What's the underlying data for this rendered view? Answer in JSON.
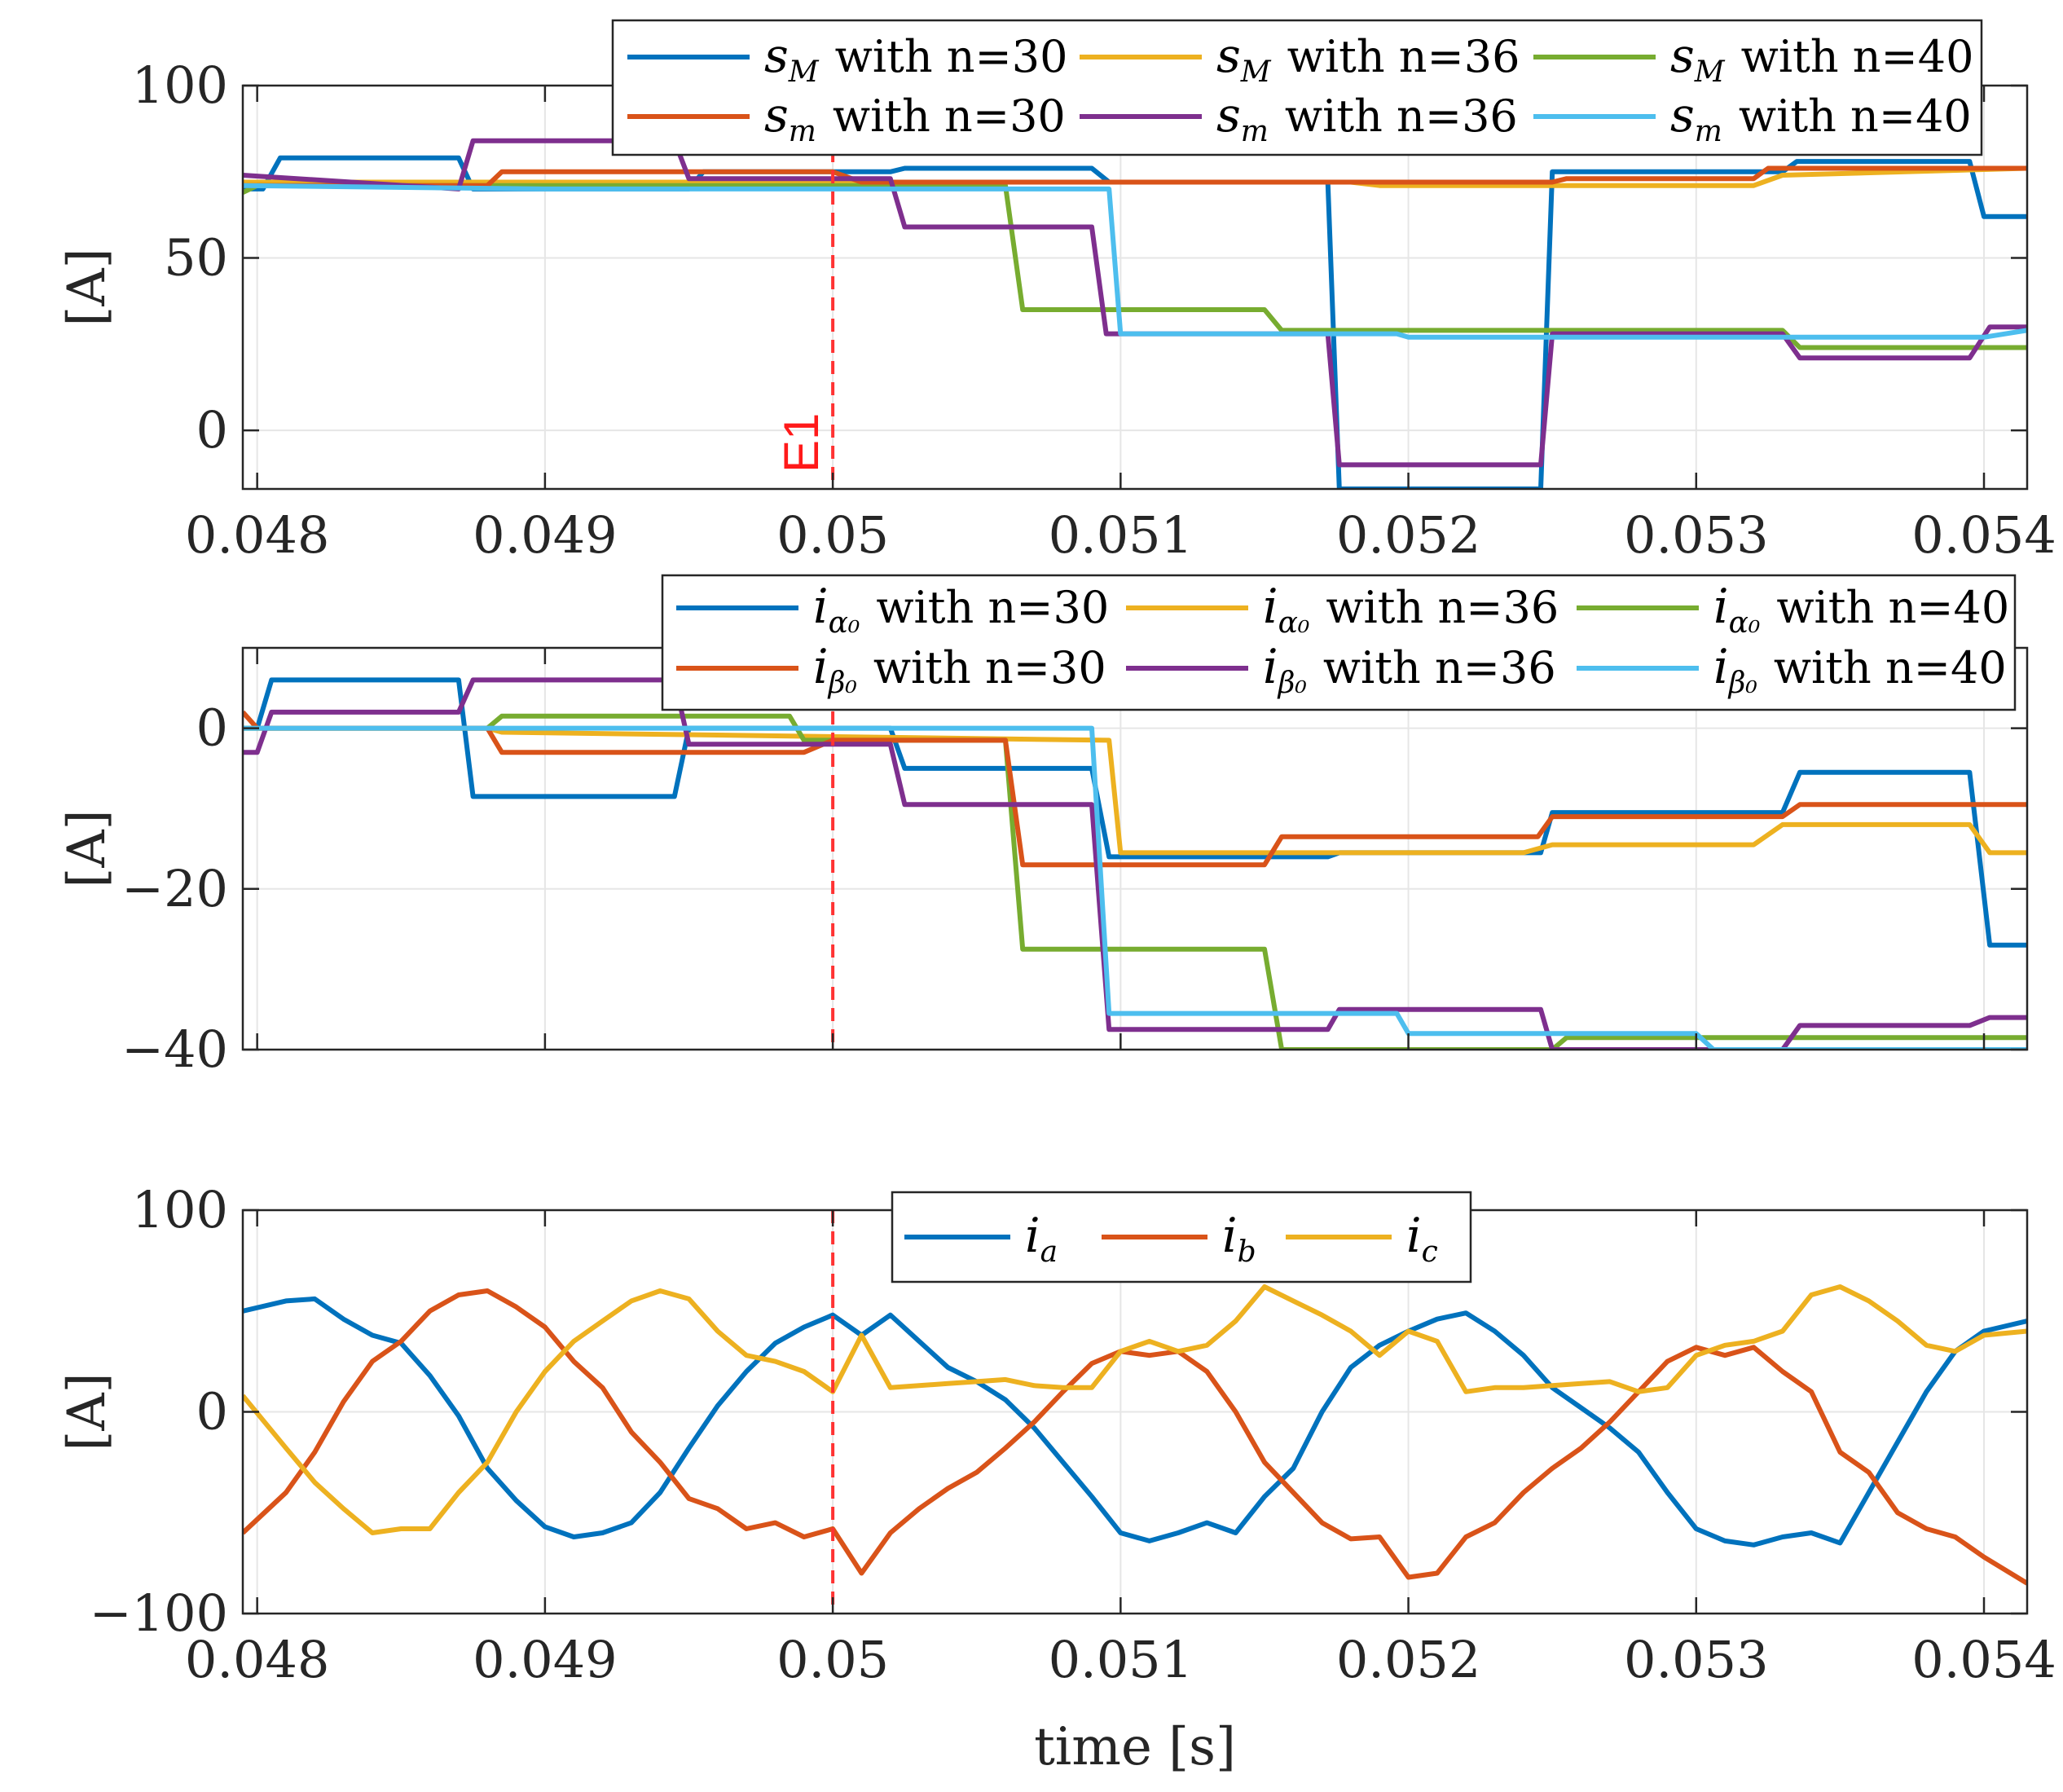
{
  "chart_data": [
    {
      "type": "line",
      "panel": "top",
      "ylabel": "[A]",
      "xlabel": "",
      "xlim": [
        0.04795,
        0.05415
      ],
      "ylim": [
        -17,
        100
      ],
      "xticks": [
        0.048,
        0.049,
        0.05,
        0.051,
        0.052,
        0.053,
        0.054
      ],
      "xtick_labels": [
        "0.048",
        "0.049",
        "0.05",
        "0.051",
        "0.052",
        "0.053",
        "0.054"
      ],
      "yticks": [
        0,
        50,
        100
      ],
      "ytick_labels": [
        "0",
        "50",
        "100"
      ],
      "grid": true,
      "legend_position": "top-right",
      "legend_columns": 3,
      "annotations": [
        {
          "type": "vline",
          "x": 0.05,
          "label": "E1",
          "color": "#ff3333"
        }
      ],
      "series": [
        {
          "name": "s_M with n=30",
          "sym": "s",
          "sub": "M",
          "suffix": "with n=30",
          "color": "#0072BD",
          "x": [
            0.04795,
            0.04802,
            0.04808,
            0.0487,
            0.04875,
            0.0495,
            0.04955,
            0.05,
            0.0502,
            0.05025,
            0.0509,
            0.05096,
            0.05172,
            0.05176,
            0.05246,
            0.0525,
            0.0533,
            0.05335,
            0.05395,
            0.054,
            0.05415
          ],
          "y": [
            70,
            70,
            79,
            79,
            70,
            70,
            75,
            75,
            75,
            76,
            76,
            72,
            72,
            -17,
            -17,
            75,
            75,
            78,
            78,
            62,
            62
          ]
        },
        {
          "name": "s_M with n=36",
          "sym": "s",
          "sub": "M",
          "suffix": "with n=36",
          "color": "#EDB120",
          "x": [
            0.04795,
            0.05,
            0.0518,
            0.0519,
            0.0532,
            0.0533,
            0.05415
          ],
          "y": [
            72,
            72,
            72,
            71,
            71,
            74,
            76
          ]
        },
        {
          "name": "s_M with n=40",
          "sym": "s",
          "sub": "M",
          "suffix": "with n=40",
          "color": "#77AC30",
          "x": [
            0.04795,
            0.048,
            0.0506,
            0.05066,
            0.0515,
            0.05156,
            0.0533,
            0.05336,
            0.05415
          ],
          "y": [
            69,
            71,
            71,
            35,
            35,
            29,
            29,
            24,
            24
          ]
        },
        {
          "name": "s_m with n=30",
          "sym": "s",
          "sub": "m",
          "suffix": "with n=30",
          "color": "#D95319",
          "x": [
            0.04795,
            0.0488,
            0.04885,
            0.05,
            0.0501,
            0.0517,
            0.0525,
            0.05255,
            0.0532,
            0.05325,
            0.05415
          ],
          "y": [
            71,
            71,
            75,
            75,
            72,
            72,
            72,
            73,
            73,
            76,
            76
          ]
        },
        {
          "name": "s_m with n=36",
          "sym": "s",
          "sub": "m",
          "suffix": "with n=36",
          "color": "#7E2F8E",
          "x": [
            0.04795,
            0.0487,
            0.04875,
            0.04945,
            0.0495,
            0.0502,
            0.05025,
            0.0509,
            0.05095,
            0.05172,
            0.05176,
            0.05246,
            0.0525,
            0.0533,
            0.05336,
            0.05395,
            0.05402,
            0.05415
          ],
          "y": [
            74,
            70,
            84,
            84,
            73,
            73,
            59,
            59,
            28,
            28,
            -10,
            -10,
            28,
            28,
            21,
            21,
            30,
            30
          ]
        },
        {
          "name": "s_m with n=40",
          "sym": "s",
          "sub": "m",
          "suffix": "with n=40",
          "color": "#4DBEEE",
          "x": [
            0.04795,
            0.049,
            0.05096,
            0.051,
            0.05196,
            0.052,
            0.054,
            0.05415
          ],
          "y": [
            71,
            70,
            70,
            28,
            28,
            27,
            27,
            29
          ]
        }
      ]
    },
    {
      "type": "line",
      "panel": "middle",
      "ylabel": "[A]",
      "xlabel": "",
      "xlim": [
        0.04795,
        0.05415
      ],
      "ylim": [
        -40,
        10
      ],
      "xticks": [
        0.048,
        0.049,
        0.05,
        0.051,
        0.052,
        0.053,
        0.054
      ],
      "yticks": [
        -40,
        -20,
        0
      ],
      "ytick_labels": [
        "−40",
        "−20",
        "0"
      ],
      "grid": true,
      "legend_position": "top-right",
      "legend_columns": 3,
      "annotations": [
        {
          "type": "vline",
          "x": 0.05,
          "color": "#ff3333"
        }
      ],
      "series": [
        {
          "name": "i_alpha0 with n=30",
          "sym": "i",
          "sub": "α₀",
          "suffix": "with n=30",
          "color": "#0072BD",
          "x": [
            0.04795,
            0.048,
            0.04805,
            0.0487,
            0.04875,
            0.04945,
            0.0495,
            0.0502,
            0.05025,
            0.0509,
            0.05096,
            0.05172,
            0.05176,
            0.05246,
            0.0525,
            0.0533,
            0.05336,
            0.05395,
            0.05402,
            0.05415
          ],
          "y": [
            0,
            0,
            6,
            6,
            -8.5,
            -8.5,
            0,
            0,
            -5,
            -5,
            -16,
            -16,
            -15.5,
            -15.5,
            -10.5,
            -10.5,
            -5.5,
            -5.5,
            -27,
            -27
          ]
        },
        {
          "name": "i_alpha0 with n=36",
          "sym": "i",
          "sub": "α₀",
          "suffix": "with n=36",
          "color": "#EDB120",
          "x": [
            0.04795,
            0.0488,
            0.04885,
            0.05096,
            0.051,
            0.0524,
            0.0525,
            0.0532,
            0.0533,
            0.05395,
            0.05402,
            0.05415
          ],
          "y": [
            0,
            0,
            -0.5,
            -1.5,
            -15.5,
            -15.5,
            -14.5,
            -14.5,
            -12,
            -12,
            -15.5,
            -15.5
          ]
        },
        {
          "name": "i_alpha0 with n=40",
          "sym": "i",
          "sub": "α₀",
          "suffix": "with n=40",
          "color": "#77AC30",
          "x": [
            0.04795,
            0.0488,
            0.04885,
            0.04985,
            0.0499,
            0.0506,
            0.05066,
            0.0515,
            0.05156,
            0.0525,
            0.05255,
            0.05415
          ],
          "y": [
            0,
            0,
            1.5,
            1.5,
            -1.5,
            -1.5,
            -27.5,
            -27.5,
            -40,
            -40,
            -38.5,
            -38.5
          ]
        },
        {
          "name": "i_beta0 with n=30",
          "sym": "i",
          "sub": "β₀",
          "suffix": "with n=30",
          "color": "#D95319",
          "x": [
            0.04795,
            0.048,
            0.0488,
            0.04885,
            0.0499,
            0.05,
            0.0506,
            0.05066,
            0.0515,
            0.05156,
            0.05245,
            0.0525,
            0.0533,
            0.05336,
            0.05415
          ],
          "y": [
            2,
            0,
            0,
            -3,
            -3,
            -1.5,
            -1.5,
            -17,
            -17,
            -13.5,
            -13.5,
            -11,
            -11,
            -9.5,
            -9.5
          ]
        },
        {
          "name": "i_beta0 with n=36",
          "sym": "i",
          "sub": "β₀",
          "suffix": "with n=36",
          "color": "#7E2F8E",
          "x": [
            0.04795,
            0.048,
            0.04805,
            0.0487,
            0.04875,
            0.04945,
            0.0495,
            0.0502,
            0.05025,
            0.0509,
            0.05096,
            0.05172,
            0.05176,
            0.05246,
            0.0525,
            0.0533,
            0.05336,
            0.05395,
            0.05402,
            0.05415
          ],
          "y": [
            -3,
            -3,
            2,
            2,
            6,
            6,
            -2,
            -2,
            -9.5,
            -9.5,
            -37.5,
            -37.5,
            -35,
            -35,
            -40,
            -40,
            -37,
            -37,
            -36,
            -36
          ]
        },
        {
          "name": "i_beta0 with n=40",
          "sym": "i",
          "sub": "β₀",
          "suffix": "with n=40",
          "color": "#4DBEEE",
          "x": [
            0.04795,
            0.0509,
            0.05096,
            0.05196,
            0.052,
            0.053,
            0.05306,
            0.05415
          ],
          "y": [
            0,
            0,
            -35.5,
            -35.5,
            -38,
            -38,
            -40,
            -40
          ]
        }
      ]
    },
    {
      "type": "line",
      "panel": "bottom",
      "ylabel": "[A]",
      "xlabel": "time [s]",
      "xlim": [
        0.04795,
        0.05415
      ],
      "ylim": [
        -100,
        100
      ],
      "xticks": [
        0.048,
        0.049,
        0.05,
        0.051,
        0.052,
        0.053,
        0.054
      ],
      "xtick_labels": [
        "0.048",
        "0.049",
        "0.05",
        "0.051",
        "0.052",
        "0.053",
        "0.054"
      ],
      "yticks": [
        -100,
        0,
        100
      ],
      "ytick_labels": [
        "−100",
        "0",
        "100"
      ],
      "grid": true,
      "legend_position": "top-center",
      "legend_columns": 3,
      "annotations": [
        {
          "type": "vline",
          "x": 0.05,
          "color": "#ff3333"
        }
      ],
      "series": [
        {
          "name": "i_a",
          "sym": "i",
          "sub": "a",
          "suffix": "",
          "color": "#0072BD",
          "x": [
            0.04795,
            0.0481,
            0.0482,
            0.0483,
            0.0484,
            0.0485,
            0.0486,
            0.0487,
            0.0488,
            0.0489,
            0.049,
            0.0491,
            0.0492,
            0.0493,
            0.0494,
            0.0495,
            0.0496,
            0.0497,
            0.0498,
            0.0499,
            0.05,
            0.0501,
            0.0502,
            0.0503,
            0.0504,
            0.0505,
            0.0506,
            0.0507,
            0.0508,
            0.0509,
            0.051,
            0.0511,
            0.0512,
            0.0513,
            0.0514,
            0.0515,
            0.0516,
            0.0517,
            0.0518,
            0.0519,
            0.052,
            0.0521,
            0.0522,
            0.0523,
            0.0524,
            0.0525,
            0.0526,
            0.0527,
            0.0528,
            0.0529,
            0.053,
            0.0531,
            0.0532,
            0.0533,
            0.0534,
            0.0535,
            0.0536,
            0.0537,
            0.0538,
            0.0539,
            0.054,
            0.05415
          ],
          "y": [
            50,
            55,
            56,
            46,
            38,
            34,
            18,
            -2,
            -28,
            -44,
            -57,
            -62,
            -60,
            -55,
            -40,
            -18,
            3,
            20,
            34,
            42,
            48,
            38,
            48,
            35,
            22,
            15,
            6,
            -8,
            -25,
            -42,
            -60,
            -64,
            -60,
            -55,
            -60,
            -42,
            -28,
            0,
            22,
            33,
            40,
            46,
            49,
            40,
            28,
            12,
            2,
            -8,
            -20,
            -40,
            -58,
            -64,
            -66,
            -62,
            -60,
            -65,
            -40,
            -15,
            10,
            30,
            40,
            45
          ]
        },
        {
          "name": "i_b",
          "sym": "i",
          "sub": "b",
          "suffix": "",
          "color": "#D95319",
          "x": [
            0.04795,
            0.0481,
            0.0482,
            0.0483,
            0.0484,
            0.0485,
            0.0486,
            0.0487,
            0.0488,
            0.0489,
            0.049,
            0.0491,
            0.0492,
            0.0493,
            0.0494,
            0.0495,
            0.0496,
            0.0497,
            0.0498,
            0.0499,
            0.05,
            0.0501,
            0.0502,
            0.0503,
            0.0504,
            0.0505,
            0.0506,
            0.0507,
            0.0508,
            0.0509,
            0.051,
            0.0511,
            0.0512,
            0.0513,
            0.0514,
            0.0515,
            0.0516,
            0.0517,
            0.0518,
            0.0519,
            0.052,
            0.0521,
            0.0522,
            0.0523,
            0.0524,
            0.0525,
            0.0526,
            0.0527,
            0.0528,
            0.0529,
            0.053,
            0.0531,
            0.0532,
            0.0533,
            0.0534,
            0.0535,
            0.0536,
            0.0537,
            0.0538,
            0.0539,
            0.054,
            0.05415
          ],
          "y": [
            -60,
            -40,
            -20,
            5,
            25,
            35,
            50,
            58,
            60,
            52,
            42,
            25,
            12,
            -10,
            -25,
            -43,
            -48,
            -58,
            -55,
            -62,
            -58,
            -80,
            -60,
            -48,
            -38,
            -30,
            -18,
            -5,
            10,
            24,
            30,
            28,
            30,
            20,
            0,
            -25,
            -40,
            -55,
            -63,
            -62,
            -82,
            -80,
            -62,
            -55,
            -40,
            -28,
            -18,
            -5,
            10,
            25,
            32,
            28,
            32,
            20,
            10,
            -20,
            -30,
            -50,
            -58,
            -62,
            -72,
            -85
          ]
        },
        {
          "name": "i_c",
          "sym": "i",
          "sub": "c",
          "suffix": "",
          "color": "#EDB120",
          "x": [
            0.04795,
            0.0481,
            0.0482,
            0.0483,
            0.0484,
            0.0485,
            0.0486,
            0.0487,
            0.0488,
            0.0489,
            0.049,
            0.0491,
            0.0492,
            0.0493,
            0.0494,
            0.0495,
            0.0496,
            0.0497,
            0.0498,
            0.0499,
            0.05,
            0.0501,
            0.0502,
            0.0503,
            0.0504,
            0.0505,
            0.0506,
            0.0507,
            0.0508,
            0.0509,
            0.051,
            0.0511,
            0.0512,
            0.0513,
            0.0514,
            0.0515,
            0.0516,
            0.0517,
            0.0518,
            0.0519,
            0.052,
            0.0521,
            0.0522,
            0.0523,
            0.0524,
            0.0525,
            0.0526,
            0.0527,
            0.0528,
            0.0529,
            0.053,
            0.0531,
            0.0532,
            0.0533,
            0.0534,
            0.0535,
            0.0536,
            0.0537,
            0.0538,
            0.0539,
            0.054,
            0.05415
          ],
          "y": [
            8,
            -18,
            -35,
            -48,
            -60,
            -58,
            -58,
            -40,
            -25,
            0,
            20,
            35,
            45,
            55,
            60,
            56,
            40,
            28,
            25,
            20,
            10,
            38,
            12,
            13,
            14,
            15,
            16,
            13,
            12,
            12,
            30,
            35,
            30,
            33,
            45,
            62,
            55,
            48,
            40,
            28,
            40,
            35,
            10,
            12,
            12,
            13,
            14,
            15,
            10,
            12,
            28,
            33,
            35,
            40,
            58,
            62,
            55,
            45,
            33,
            30,
            38,
            40
          ]
        }
      ]
    }
  ]
}
